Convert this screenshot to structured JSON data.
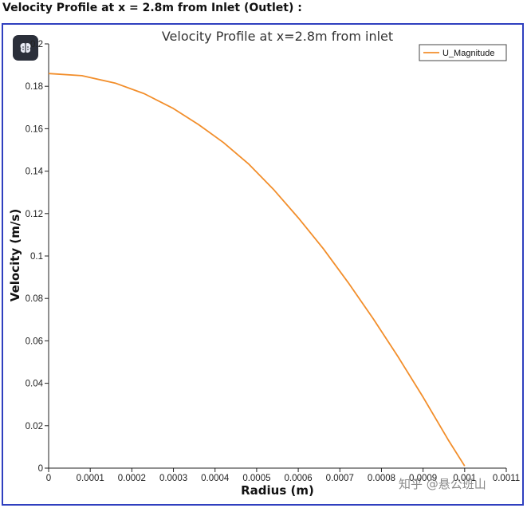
{
  "page": {
    "heading": "Velocity Profile at x = 2.8m from Inlet (Outlet) :",
    "watermark": "知乎 @悬公班山",
    "badge_icon": "brain-icon"
  },
  "colors": {
    "line": "#f28e2b",
    "frame": "#2f3fbf",
    "badge": "#2b2f3a"
  },
  "chart_data": {
    "type": "line",
    "title": "Velocity Profile at x=2.8m from inlet",
    "xlabel": "Radius (m)",
    "ylabel": "Velocity (m/s)",
    "xlim": [
      0,
      0.0011
    ],
    "ylim": [
      0,
      0.2
    ],
    "xticks": [
      "0",
      "0.0001",
      "0.0002",
      "0.0003",
      "0.0004",
      "0.0005",
      "0.0006",
      "0.0007",
      "0.0008",
      "0.0009",
      "0.001",
      "0.0011"
    ],
    "yticks": [
      "0",
      "0.02",
      "0.04",
      "0.06",
      "0.08",
      "0.1",
      "0.12",
      "0.14",
      "0.16",
      "0.18",
      "0.2"
    ],
    "grid": false,
    "legend_position": "top-right",
    "series": [
      {
        "name": "U_Magnitude",
        "x": [
          0,
          8e-05,
          0.00016,
          0.00023,
          0.0003,
          0.00036,
          0.00042,
          0.00048,
          0.00054,
          0.0006,
          0.00066,
          0.00072,
          0.00078,
          0.00084,
          0.0009,
          0.00096,
          0.001
        ],
        "values": [
          0.186,
          0.185,
          0.1815,
          0.1765,
          0.1695,
          0.162,
          0.1535,
          0.1435,
          0.1315,
          0.118,
          0.1035,
          0.0875,
          0.0705,
          0.0525,
          0.0335,
          0.0135,
          0.001
        ]
      }
    ]
  }
}
